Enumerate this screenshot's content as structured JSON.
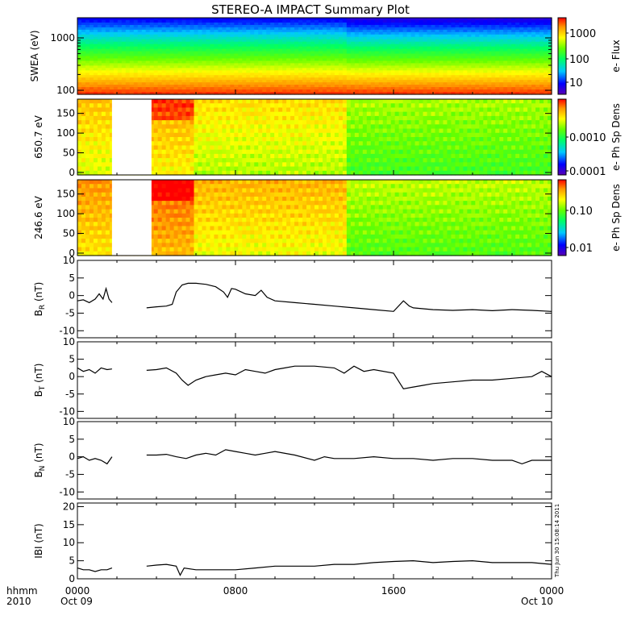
{
  "title": "STEREO-A IMPACT Summary Plot",
  "footer": {
    "row1_left": "hhmm",
    "row2_left": "2010",
    "x_ticks": [
      "0000",
      "0800",
      "1600",
      "0000"
    ],
    "x_dates": [
      "Oct 09",
      "Oct 10"
    ],
    "timestamp": "Thu Jun 30 15:08:14 2011"
  },
  "colors": {
    "spectrogram_scale": [
      "#5a00b4",
      "#0000ff",
      "#00c8ff",
      "#00ff64",
      "#64ff00",
      "#ffff00",
      "#ff9600",
      "#ff0000"
    ],
    "line": "#000000",
    "gap": "#ffffff"
  },
  "chart_data": [
    {
      "type": "heatmap",
      "ylabel": "SWEA (eV)",
      "y_scale": "log",
      "y_ticks": [
        "1000",
        "100"
      ],
      "colorbar_label": "e- Flux",
      "colorbar_ticks": [
        "1000",
        "100",
        "10"
      ],
      "x_range_hours": [
        0,
        24
      ],
      "description_levels": {
        "low_energy_level": 0.95,
        "high_energy_level": 0.08
      }
    },
    {
      "type": "heatmap",
      "ylabel": "650.7 eV",
      "ylim": [
        0,
        180
      ],
      "y_ticks": [
        "150",
        "100",
        "50",
        "0"
      ],
      "colorbar_label": "e- Ph Sp Dens",
      "colorbar_ticks": [
        "0.0010",
        "0.0001"
      ],
      "data_gaps_hours": [
        [
          1.75,
          3.75
        ]
      ]
    },
    {
      "type": "heatmap",
      "ylabel": "246.6 eV",
      "ylim": [
        0,
        180
      ],
      "y_ticks": [
        "150",
        "100",
        "50",
        "0"
      ],
      "colorbar_label": "e- Ph Sp Dens",
      "colorbar_ticks": [
        "0.10",
        "0.01"
      ],
      "data_gaps_hours": [
        [
          1.75,
          3.75
        ]
      ]
    },
    {
      "type": "line",
      "ylabel": "B_R (nT)",
      "ylabel_main": "B",
      "ylabel_sub": "R",
      "ylabel_unit": "(nT)",
      "ylim": [
        -12,
        10
      ],
      "y_ticks": [
        "10",
        "5",
        "0",
        "-5",
        "-10"
      ],
      "x": [
        0,
        0.3,
        0.6,
        0.9,
        1.1,
        1.3,
        1.45,
        1.6,
        1.75,
        3.5,
        4.0,
        4.5,
        4.8,
        5.0,
        5.3,
        5.6,
        6.0,
        6.5,
        7.0,
        7.4,
        7.6,
        7.8,
        8.0,
        8.5,
        9.0,
        9.3,
        9.6,
        10.0,
        11.0,
        12.0,
        13.0,
        14.0,
        15.0,
        16.0,
        16.5,
        16.8,
        17.0,
        18.0,
        19.0,
        20.0,
        21.0,
        22.0,
        23.0,
        24.0
      ],
      "y": [
        -1.5,
        -1.2,
        -2.0,
        -1.0,
        0.5,
        -1.0,
        2.0,
        -1.0,
        -2.0,
        -3.5,
        -3.2,
        -3.0,
        -2.5,
        1.0,
        3.0,
        3.5,
        3.5,
        3.2,
        2.5,
        1.0,
        -0.5,
        2.0,
        1.8,
        0.5,
        0.0,
        1.5,
        -0.5,
        -1.5,
        -2.0,
        -2.5,
        -3.0,
        -3.5,
        -4.0,
        -4.5,
        -1.5,
        -3.0,
        -3.5,
        -4.0,
        -4.2,
        -4.0,
        -4.3,
        -4.0,
        -4.2,
        -4.5
      ]
    },
    {
      "type": "line",
      "ylabel": "B_T (nT)",
      "ylabel_main": "B",
      "ylabel_sub": "T",
      "ylabel_unit": "(nT)",
      "ylim": [
        -12,
        10
      ],
      "y_ticks": [
        "10",
        "5",
        "0",
        "-5",
        "-10"
      ],
      "x": [
        0,
        0.3,
        0.6,
        0.9,
        1.2,
        1.5,
        1.75,
        3.5,
        4.0,
        4.5,
        5.0,
        5.3,
        5.6,
        6.0,
        6.5,
        7.0,
        7.5,
        8.0,
        8.5,
        9.0,
        9.5,
        10.0,
        10.5,
        11.0,
        12.0,
        13.0,
        13.5,
        14.0,
        14.5,
        15.0,
        16.0,
        16.5,
        17.0,
        17.5,
        18.0,
        19.0,
        20.0,
        21.0,
        22.0,
        23.0,
        23.5,
        24.0
      ],
      "y": [
        2.5,
        1.5,
        2.0,
        1.0,
        2.5,
        2.0,
        2.2,
        1.8,
        2.0,
        2.5,
        1.0,
        -1.0,
        -2.5,
        -1.0,
        0.0,
        0.5,
        1.0,
        0.5,
        2.0,
        1.5,
        1.0,
        2.0,
        2.5,
        3.0,
        3.0,
        2.5,
        1.0,
        3.0,
        1.5,
        2.0,
        1.0,
        -3.5,
        -3.0,
        -2.5,
        -2.0,
        -1.5,
        -1.0,
        -1.0,
        -0.5,
        0.0,
        1.5,
        0.0
      ]
    },
    {
      "type": "line",
      "ylabel": "B_N (nT)",
      "ylabel_main": "B",
      "ylabel_sub": "N",
      "ylabel_unit": "(nT)",
      "ylim": [
        -12,
        10
      ],
      "y_ticks": [
        "10",
        "5",
        "0",
        "-5",
        "-10"
      ],
      "x": [
        0,
        0.3,
        0.6,
        0.9,
        1.2,
        1.5,
        1.75,
        3.5,
        4.0,
        4.5,
        5.0,
        5.5,
        6.0,
        6.5,
        7.0,
        7.5,
        8.0,
        8.5,
        9.0,
        9.5,
        10.0,
        11.0,
        12.0,
        12.5,
        13.0,
        14.0,
        15.0,
        16.0,
        17.0,
        18.0,
        19.0,
        20.0,
        21.0,
        22.0,
        22.5,
        23.0,
        24.0
      ],
      "y": [
        -0.5,
        0.0,
        -1.0,
        -0.5,
        -1.0,
        -2.0,
        0.0,
        0.5,
        0.5,
        0.7,
        0.0,
        -0.5,
        0.5,
        1.0,
        0.5,
        2.0,
        1.5,
        1.0,
        0.5,
        1.0,
        1.5,
        0.5,
        -1.0,
        0.0,
        -0.5,
        -0.5,
        0.0,
        -0.5,
        -0.5,
        -1.0,
        -0.5,
        -0.5,
        -1.0,
        -1.0,
        -2.0,
        -1.0,
        -1.0
      ]
    },
    {
      "type": "line",
      "ylabel": "|B| (nT)",
      "ylabel_main": "IBI",
      "ylabel_sub": "",
      "ylabel_unit": "(nT)",
      "ylim": [
        0,
        21
      ],
      "y_ticks": [
        "20",
        "15",
        "10",
        "5",
        "0"
      ],
      "x": [
        0,
        0.3,
        0.6,
        0.9,
        1.2,
        1.5,
        1.75,
        3.5,
        4.0,
        4.5,
        5.0,
        5.2,
        5.4,
        6.0,
        7.0,
        8.0,
        9.0,
        10.0,
        11.0,
        12.0,
        13.0,
        14.0,
        15.0,
        16.0,
        17.0,
        18.0,
        19.0,
        20.0,
        21.0,
        22.0,
        23.0,
        24.0
      ],
      "y": [
        3.0,
        2.5,
        2.5,
        2.0,
        2.5,
        2.5,
        3.0,
        3.5,
        3.8,
        4.0,
        3.5,
        1.0,
        3.0,
        2.5,
        2.5,
        2.5,
        3.0,
        3.5,
        3.5,
        3.5,
        4.0,
        4.0,
        4.5,
        4.8,
        5.0,
        4.5,
        4.8,
        5.0,
        4.5,
        4.5,
        4.5,
        4.0
      ]
    }
  ]
}
